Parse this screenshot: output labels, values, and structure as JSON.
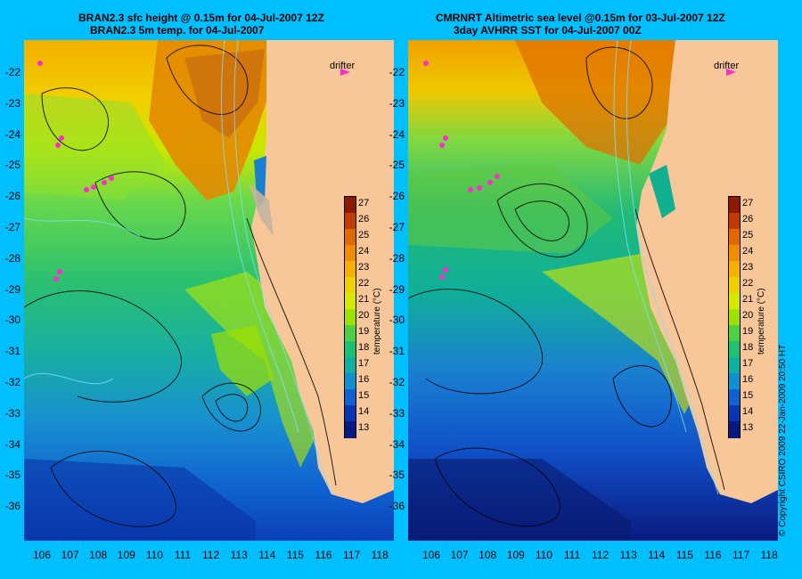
{
  "left_panel": {
    "title_line1": "BRAN2.3 sfc height @ 0.15m for 04-Jul-2007 12Z",
    "title_line2": "BRAN2.3 5m temp. for 04-Jul-2007"
  },
  "right_panel": {
    "title_line1": "CMRNRT Altimetric sea level  @0.15m  for 03-Jul-2007 12Z",
    "title_line2": "3day AVHRR SST for 04-Jul-2007 00Z"
  },
  "drifter_label": "drifter",
  "latitudes": [
    "-22",
    "-23",
    "-24",
    "-25",
    "-26",
    "-27",
    "-28",
    "-29",
    "-30",
    "-31",
    "-32",
    "-33",
    "-34",
    "-35",
    "-36"
  ],
  "longitudes": [
    "106",
    "107",
    "108",
    "109",
    "110",
    "111",
    "112",
    "113",
    "114",
    "115",
    "116",
    "117",
    "118"
  ],
  "colorbar": {
    "title": "temperature (°C)",
    "ticks": [
      "27",
      "26",
      "25",
      "24",
      "23",
      "22",
      "21",
      "20",
      "19",
      "18",
      "17",
      "16",
      "15",
      "14",
      "13"
    ],
    "colors": [
      "#8b1a00",
      "#c23b00",
      "#e06a00",
      "#f08c00",
      "#f5b000",
      "#f0d000",
      "#d6e800",
      "#9ee000",
      "#4fd040",
      "#1cc070",
      "#10b0a0",
      "#1090d0",
      "#1060d0",
      "#0a35b0",
      "#081a80"
    ]
  },
  "copyright": "© Copyright CSIRO 2009   22-Jan-2009 20:50 HT"
}
